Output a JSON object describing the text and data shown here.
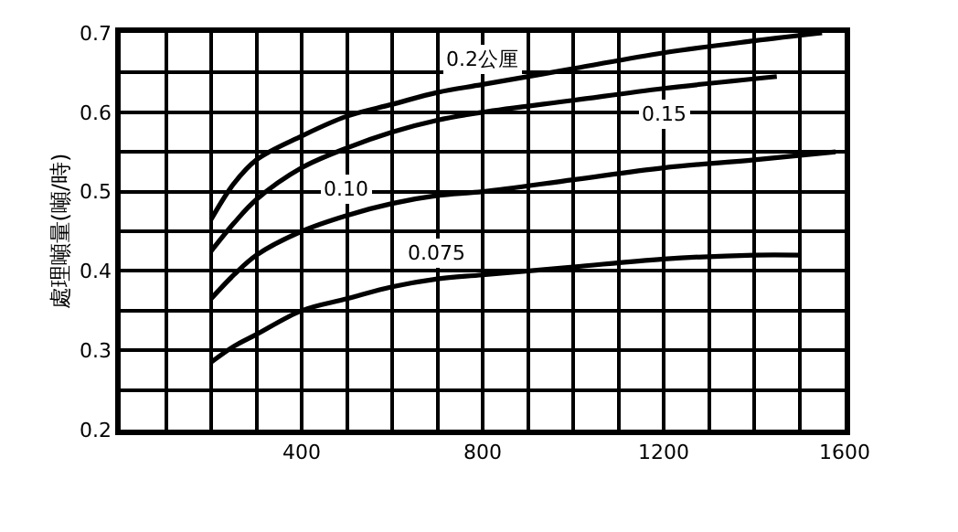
{
  "chart_data": {
    "type": "line",
    "ylabel": "處理噸量(噸/時)",
    "series": [
      {
        "name": "0.2公厘",
        "color": "#000000",
        "x": [
          200,
          250,
          300,
          400,
          500,
          600,
          700,
          800,
          1000,
          1200,
          1400,
          1550
        ],
        "values": [
          0.465,
          0.51,
          0.54,
          0.57,
          0.595,
          0.61,
          0.625,
          0.635,
          0.655,
          0.675,
          0.69,
          0.7
        ]
      },
      {
        "name": "0.15",
        "color": "#000000",
        "x": [
          200,
          250,
          300,
          400,
          500,
          600,
          700,
          800,
          1000,
          1200,
          1450
        ],
        "values": [
          0.425,
          0.46,
          0.49,
          0.53,
          0.555,
          0.575,
          0.59,
          0.6,
          0.615,
          0.63,
          0.645
        ]
      },
      {
        "name": "0.10",
        "color": "#000000",
        "x": [
          200,
          250,
          300,
          400,
          500,
          600,
          700,
          800,
          1000,
          1200,
          1400,
          1580
        ],
        "values": [
          0.365,
          0.395,
          0.42,
          0.45,
          0.47,
          0.485,
          0.495,
          0.5,
          0.515,
          0.53,
          0.54,
          0.55
        ]
      },
      {
        "name": "0.075",
        "color": "#000000",
        "x": [
          200,
          250,
          300,
          400,
          500,
          600,
          700,
          800,
          1000,
          1200,
          1400,
          1500
        ],
        "values": [
          0.285,
          0.305,
          0.32,
          0.35,
          0.365,
          0.38,
          0.39,
          0.395,
          0.405,
          0.415,
          0.42,
          0.42
        ]
      }
    ],
    "xlim": [
      0,
      1600
    ],
    "xticks": [
      {
        "value": 100,
        "label": null
      },
      {
        "value": 200,
        "label": null
      },
      {
        "value": 300,
        "label": null
      },
      400,
      {
        "value": 500,
        "label": null
      },
      {
        "value": 600,
        "label": null
      },
      {
        "value": 700,
        "label": null
      },
      800,
      {
        "value": 900,
        "label": null
      },
      {
        "value": 1000,
        "label": null
      },
      {
        "value": 1100,
        "label": null
      },
      1200,
      {
        "value": 1300,
        "label": null
      },
      {
        "value": 1400,
        "label": null
      },
      {
        "value": 1500,
        "label": null
      },
      1600
    ],
    "ylim": [
      0.2,
      0.7
    ],
    "yticks": [
      0.2,
      {
        "value": 0.25,
        "label": null
      },
      0.3,
      {
        "value": 0.35,
        "label": null
      },
      0.4,
      {
        "value": 0.45,
        "label": null
      },
      0.5,
      {
        "value": 0.55,
        "label": null
      },
      0.6,
      {
        "value": 0.65,
        "label": null
      },
      0.7
    ],
    "grid": true,
    "legend": false,
    "marker": "none",
    "line_style": "solid"
  }
}
